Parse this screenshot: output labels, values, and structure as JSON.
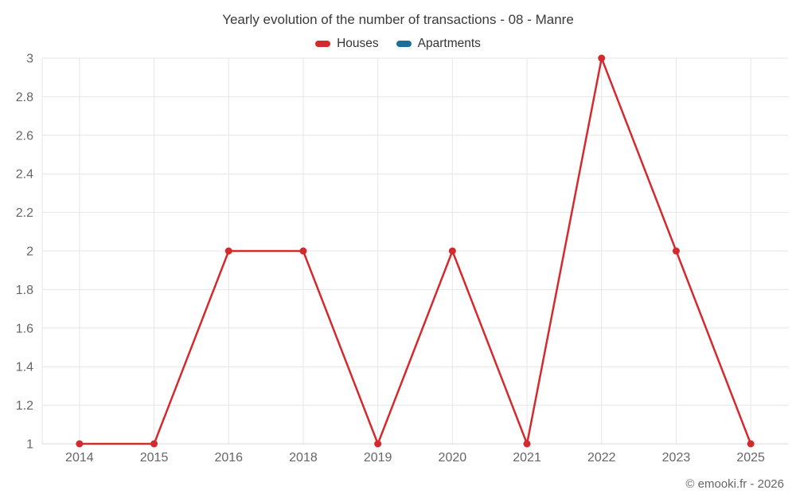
{
  "title": "Yearly evolution of the number of transactions - 08 - Manre",
  "copyright": "© emooki.fr - 2026",
  "legend": {
    "items": [
      {
        "label": "Houses",
        "color": "#d42a2e"
      },
      {
        "label": "Apartments",
        "color": "#1c6e9c"
      }
    ]
  },
  "colors": {
    "houses": "#d42a2e",
    "apartments": "#1c6e9c",
    "gridline": "#e6e6e6",
    "axis_line": "#d8d8d8",
    "axis_text": "#666666",
    "title_text": "#3a3a3a"
  },
  "chart_data": {
    "type": "line",
    "title": "Yearly evolution of the number of transactions - 08 - Manre",
    "categories": [
      "2014",
      "2015",
      "2016",
      "2018",
      "2019",
      "2020",
      "2021",
      "2022",
      "2023",
      "2025"
    ],
    "series": [
      {
        "name": "Houses",
        "color": "#d42a2e",
        "marker": "circle",
        "values": [
          1,
          1,
          2,
          2,
          1,
          2,
          1,
          3,
          2,
          1
        ]
      },
      {
        "name": "Apartments",
        "color": "#1c6e9c",
        "marker": "circle",
        "values": []
      }
    ],
    "xlabel": "",
    "ylabel": "",
    "ylim": [
      1,
      3
    ],
    "ytick_step": 0.2,
    "ytick_labels": [
      "1",
      "1.2",
      "1.4",
      "1.6",
      "1.8",
      "2",
      "2.2",
      "2.4",
      "2.6",
      "2.8",
      "3"
    ],
    "grid": true,
    "legend_position": "top"
  }
}
